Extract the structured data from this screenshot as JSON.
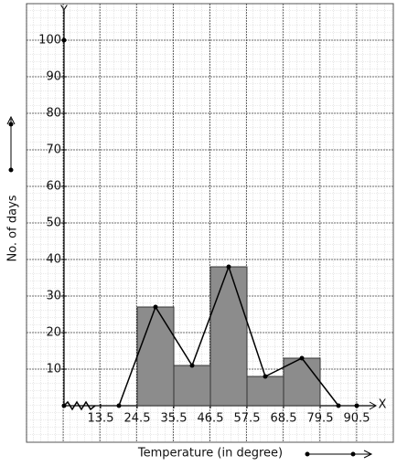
{
  "chart_data": {
    "type": "histogram",
    "x_label": "Temperature (in degree)",
    "y_label": "No. of days",
    "x_axis_name": "X",
    "y_axis_name": "Y",
    "bins": [
      24.5,
      35.5,
      46.5,
      57.5,
      68.5,
      79.5
    ],
    "values": [
      27,
      11,
      38,
      8,
      13
    ],
    "color": "#8c8c8c",
    "polygon": {
      "x": [
        19,
        30,
        41,
        52,
        63,
        74,
        85
      ],
      "values": [
        0,
        27,
        11,
        38,
        8,
        13,
        0
      ]
    },
    "xlim": [
      2.5,
      101.5
    ],
    "xticks": [
      13.5,
      24.5,
      35.5,
      46.5,
      57.5,
      68.5,
      79.5,
      90.5
    ],
    "ylim": [
      -10,
      110
    ],
    "yticks": [
      10,
      20,
      30,
      40,
      50,
      60,
      70,
      80,
      90,
      100
    ],
    "grid": true
  }
}
